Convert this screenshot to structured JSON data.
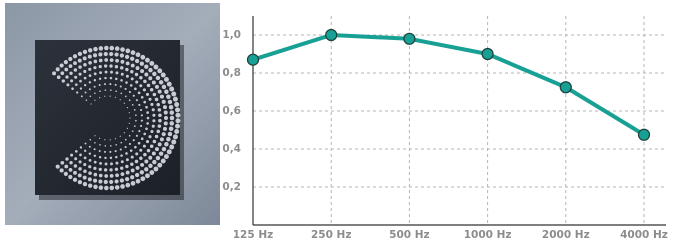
{
  "chart_data": {
    "type": "line",
    "categories": [
      "125 Hz",
      "250 Hz",
      "500 Hz",
      "1000 Hz",
      "2000 Hz",
      "4000 Hz"
    ],
    "values": [
      0.87,
      1.0,
      0.98,
      0.9,
      0.725,
      0.475
    ],
    "color": "#17a093",
    "ylim": [
      0,
      1.1
    ],
    "yticks": [
      {
        "value": 0.2,
        "label": "0,2"
      },
      {
        "value": 0.4,
        "label": "0,4"
      },
      {
        "value": 0.6,
        "label": "0,6"
      },
      {
        "value": 0.8,
        "label": "0,8"
      },
      {
        "value": 1.0,
        "label": "1,0"
      }
    ],
    "grid": true
  }
}
